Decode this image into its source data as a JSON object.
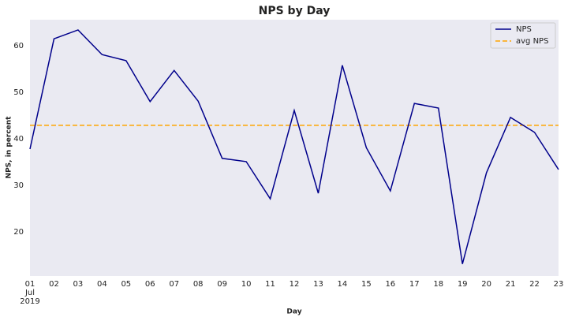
{
  "chart_data": {
    "type": "line",
    "title": "NPS by Day",
    "xlabel": "Day",
    "ylabel": "NPS, in percent",
    "categories": [
      "01",
      "02",
      "03",
      "04",
      "05",
      "06",
      "07",
      "08",
      "09",
      "10",
      "11",
      "12",
      "13",
      "14",
      "15",
      "16",
      "17",
      "18",
      "19",
      "20",
      "21",
      "22",
      "23"
    ],
    "month_label": "Jul",
    "year_label": "2019",
    "series": [
      {
        "name": "NPS",
        "color": "#00008b",
        "values": [
          37.8,
          61.5,
          63.4,
          58.1,
          56.8,
          48.0,
          54.7,
          48.1,
          35.8,
          35.1,
          27.1,
          46.1,
          28.3,
          55.8,
          38.1,
          28.8,
          47.6,
          46.6,
          13.1,
          32.7,
          44.6,
          41.4,
          33.4
        ]
      }
    ],
    "reference_line": {
      "name": "avg NPS",
      "value": 42.9,
      "color": "#ffa500",
      "dashed": true
    },
    "ylim": [
      10.5,
      65.6
    ],
    "yticks": [
      20,
      30,
      40,
      50,
      60
    ],
    "grid": false,
    "legend": "upper right"
  }
}
